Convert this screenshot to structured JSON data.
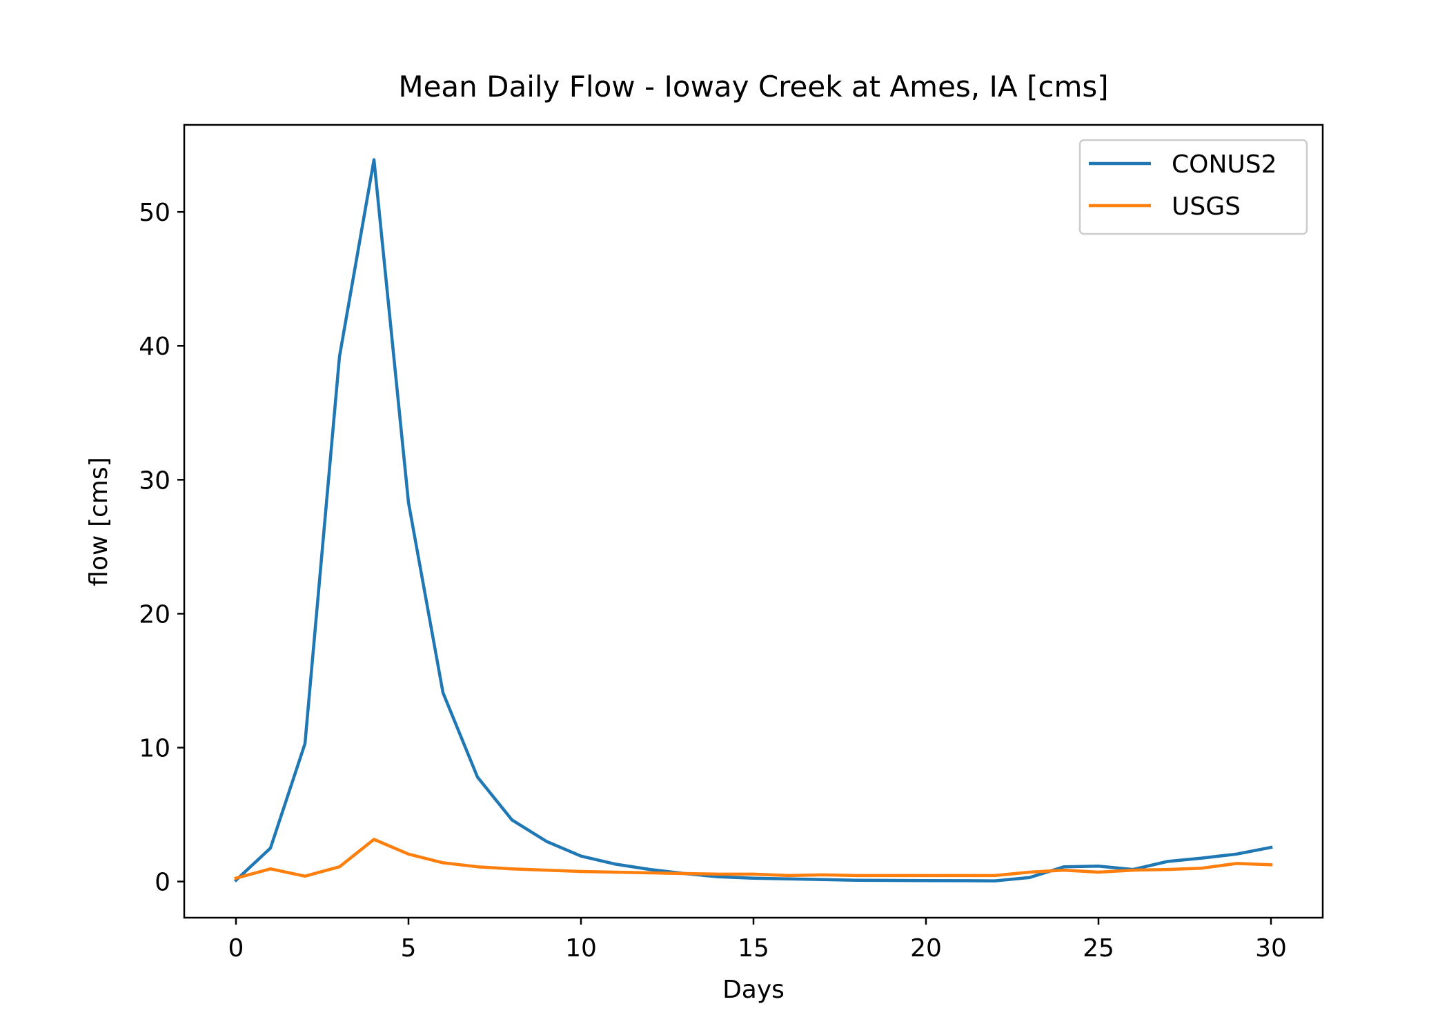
{
  "chart_data": {
    "type": "line",
    "title": "Mean Daily Flow - Ioway Creek at Ames, IA [cms]",
    "xlabel": "Days",
    "ylabel": "flow [cms]",
    "xlim": [
      -1.5,
      31.5
    ],
    "ylim": [
      -2.7,
      56.5
    ],
    "xticks": [
      0,
      5,
      10,
      15,
      20,
      25,
      30
    ],
    "yticks": [
      0,
      10,
      20,
      30,
      40,
      50
    ],
    "grid": false,
    "legend_position": "top-right",
    "x": [
      0,
      1,
      2,
      3,
      4,
      5,
      6,
      7,
      8,
      9,
      10,
      11,
      12,
      13,
      14,
      15,
      16,
      17,
      18,
      19,
      20,
      21,
      22,
      23,
      24,
      25,
      26,
      27,
      28,
      29,
      30
    ],
    "series": [
      {
        "name": "CONUS2",
        "color": "#1f77b4",
        "values": [
          0.1,
          2.5,
          10.3,
          39.2,
          53.9,
          28.3,
          14.1,
          7.8,
          4.6,
          3.0,
          1.9,
          1.3,
          0.9,
          0.6,
          0.35,
          0.25,
          0.2,
          0.15,
          0.1,
          0.08,
          0.07,
          0.06,
          0.05,
          0.3,
          1.1,
          1.15,
          0.9,
          1.5,
          1.75,
          2.05,
          2.55
        ]
      },
      {
        "name": "USGS",
        "color": "#ff7f0e",
        "values": [
          0.25,
          0.95,
          0.4,
          1.1,
          3.15,
          2.05,
          1.4,
          1.1,
          0.95,
          0.85,
          0.75,
          0.7,
          0.65,
          0.6,
          0.55,
          0.55,
          0.45,
          0.5,
          0.45,
          0.45,
          0.45,
          0.45,
          0.45,
          0.7,
          0.85,
          0.7,
          0.85,
          0.9,
          1.0,
          1.35,
          1.25
        ]
      }
    ]
  }
}
